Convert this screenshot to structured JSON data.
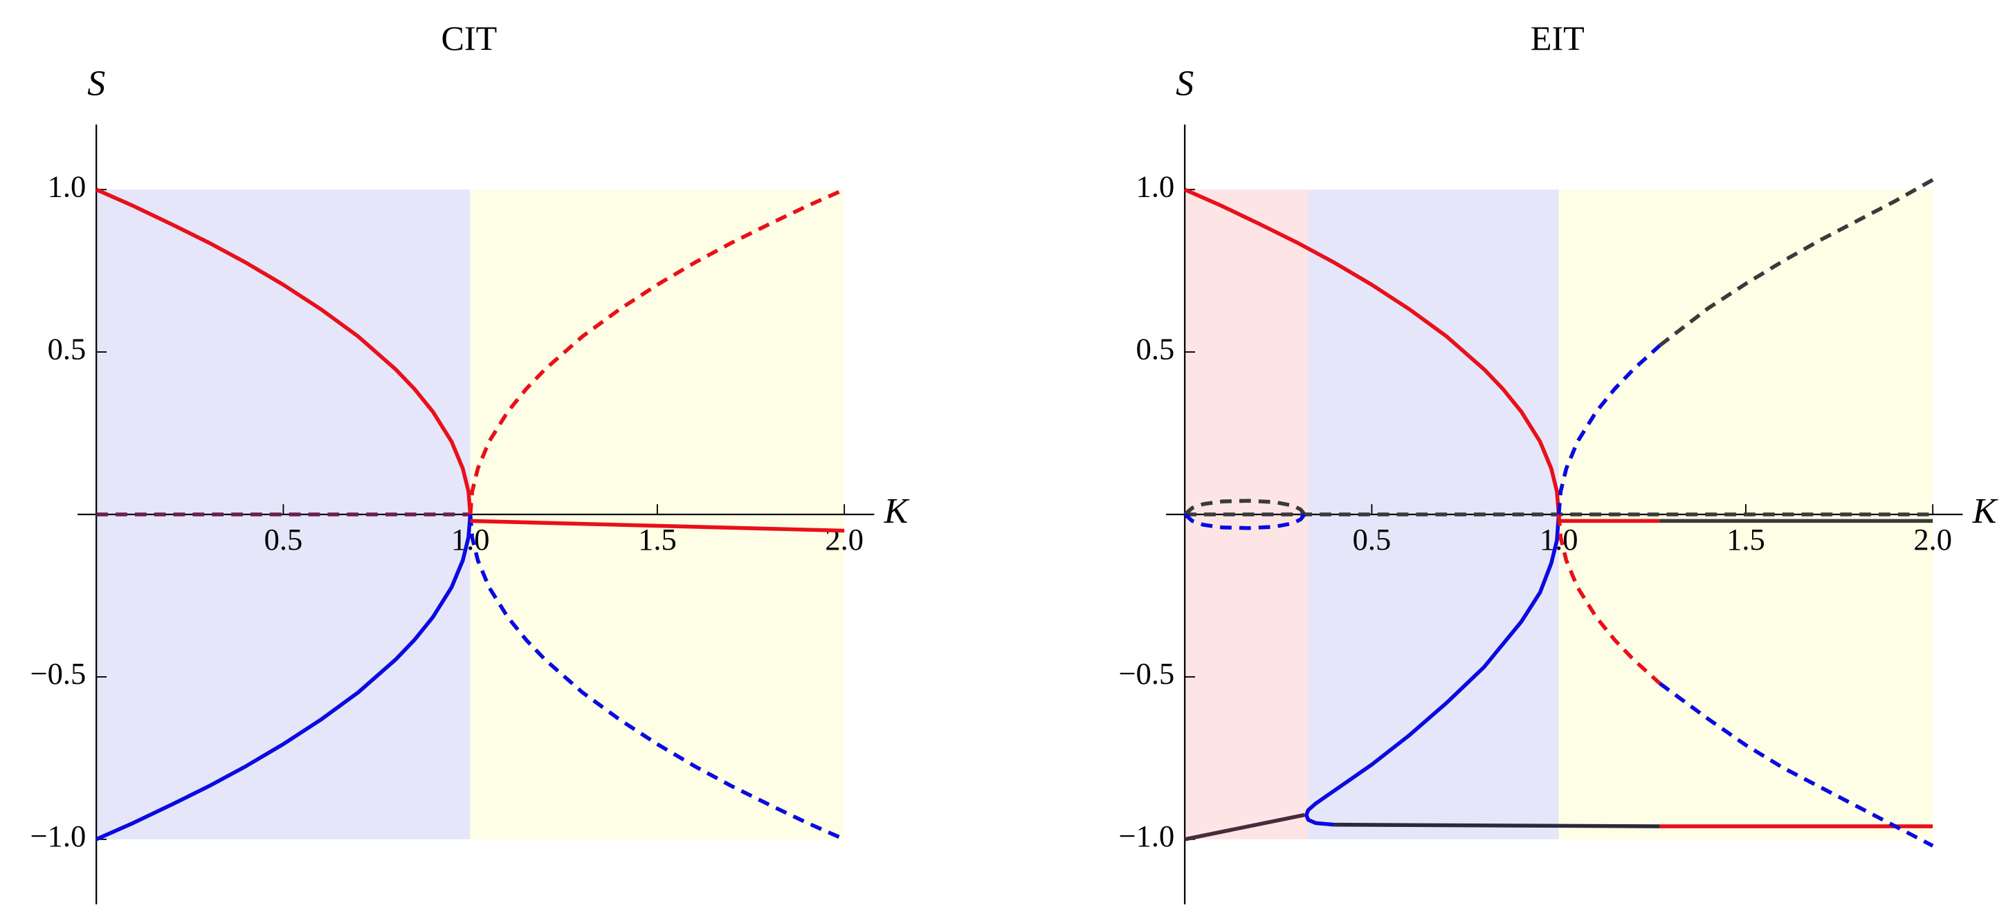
{
  "chart_data": [
    {
      "type": "line",
      "title": "CIT",
      "xlabel": "K",
      "ylabel": "S",
      "xlim": [
        -0.05,
        2.08
      ],
      "ylim": [
        -1.2,
        1.2
      ],
      "xticks": [
        0.5,
        {
          "value": 1,
          "label": "1.0"
        },
        1.5,
        {
          "value": 2,
          "label": "2.0"
        }
      ],
      "yticks": [
        {
          "value": -1,
          "label": "−1.0"
        },
        {
          "value": -0.5,
          "label": "−0.5"
        },
        0.5,
        {
          "value": 1,
          "label": "1.0"
        }
      ],
      "regions": [
        {
          "x": [
            0,
            1
          ],
          "y": [
            -1,
            1
          ],
          "color": "#e6e6fa"
        },
        {
          "x": [
            1,
            2
          ],
          "y": [
            -1,
            1
          ],
          "color": "#fefee6"
        }
      ],
      "series": [
        {
          "color": "#6a2050",
          "style": "dashed",
          "x": [
            0,
            1
          ],
          "values": [
            0,
            0
          ]
        },
        {
          "color": "#e8101a",
          "style": "solid",
          "x": [
            0,
            0.1,
            0.2,
            0.3,
            0.4,
            0.5,
            0.6,
            0.7,
            0.8,
            0.85,
            0.9,
            0.95,
            0.98,
            0.995,
            1
          ],
          "values": [
            1,
            0.949,
            0.894,
            0.837,
            0.775,
            0.707,
            0.632,
            0.548,
            0.447,
            0.387,
            0.316,
            0.224,
            0.141,
            0.071,
            0
          ]
        },
        {
          "color": "#0a0ae0",
          "style": "solid",
          "x": [
            0,
            0.1,
            0.2,
            0.3,
            0.4,
            0.5,
            0.6,
            0.7,
            0.8,
            0.85,
            0.9,
            0.95,
            0.98,
            0.995,
            1
          ],
          "values": [
            -1,
            -0.949,
            -0.894,
            -0.837,
            -0.775,
            -0.707,
            -0.632,
            -0.548,
            -0.447,
            -0.387,
            -0.316,
            -0.224,
            -0.141,
            -0.071,
            0
          ]
        },
        {
          "color": "#e8101a",
          "style": "dashed",
          "x": [
            1,
            1.005,
            1.02,
            1.05,
            1.1,
            1.15,
            1.2,
            1.3,
            1.4,
            1.5,
            1.6,
            1.7,
            1.8,
            1.9,
            2
          ],
          "values": [
            0,
            0.071,
            0.141,
            0.224,
            0.316,
            0.387,
            0.447,
            0.548,
            0.632,
            0.707,
            0.775,
            0.837,
            0.894,
            0.949,
            1
          ]
        },
        {
          "color": "#0a0ae0",
          "style": "dashed",
          "x": [
            1,
            1.005,
            1.02,
            1.05,
            1.1,
            1.15,
            1.2,
            1.3,
            1.4,
            1.5,
            1.6,
            1.7,
            1.8,
            1.9,
            2
          ],
          "values": [
            0,
            -0.071,
            -0.141,
            -0.224,
            -0.316,
            -0.387,
            -0.447,
            -0.548,
            -0.632,
            -0.707,
            -0.775,
            -0.837,
            -0.894,
            -0.949,
            -1
          ]
        },
        {
          "color": "#e8101a",
          "style": "solid",
          "x": [
            1,
            2
          ],
          "values": [
            -0.02,
            -0.05
          ]
        }
      ]
    },
    {
      "type": "line",
      "title": "EIT",
      "xlabel": "K",
      "ylabel": "S",
      "xlim": [
        -0.05,
        2.08
      ],
      "ylim": [
        -1.2,
        1.2
      ],
      "xticks": [
        0.5,
        {
          "value": 1,
          "label": "1.0"
        },
        1.5,
        {
          "value": 2,
          "label": "2.0"
        }
      ],
      "yticks": [
        {
          "value": -1,
          "label": "−1.0"
        },
        {
          "value": -0.5,
          "label": "−0.5"
        },
        0.5,
        {
          "value": 1,
          "label": "1.0"
        }
      ],
      "regions": [
        {
          "x": [
            0,
            0.33
          ],
          "y": [
            -1,
            1
          ],
          "color": "#fde5e6"
        },
        {
          "x": [
            0.33,
            1
          ],
          "y": [
            -1,
            1
          ],
          "color": "#e6e6fa"
        },
        {
          "x": [
            1,
            2
          ],
          "y": [
            -1,
            1
          ],
          "color": "#fefee6"
        }
      ],
      "series": [
        {
          "color": "#3a3a3a",
          "style": "dashed",
          "x": [
            0,
            2
          ],
          "values": [
            0,
            0
          ]
        },
        {
          "color": "#e8101a",
          "style": "solid",
          "x": [
            0,
            0.1,
            0.2,
            0.3,
            0.4,
            0.5,
            0.6,
            0.7,
            0.8,
            0.85,
            0.9,
            0.95,
            0.98,
            0.995,
            1
          ],
          "values": [
            1,
            0.949,
            0.894,
            0.837,
            0.775,
            0.707,
            0.632,
            0.548,
            0.447,
            0.387,
            0.316,
            0.224,
            0.141,
            0.071,
            0
          ]
        },
        {
          "color": "#4a2a3a",
          "style": "solid",
          "x": [
            0,
            0.32
          ],
          "values": [
            -1,
            -0.925
          ]
        },
        {
          "color": "#0a0ae0",
          "style": "solid",
          "x": [
            1,
            0.995,
            0.98,
            0.95,
            0.9,
            0.8,
            0.7,
            0.6,
            0.5,
            0.4,
            0.35,
            0.33,
            0.325,
            0.33,
            0.35,
            0.4
          ],
          "values": [
            0,
            -0.08,
            -0.15,
            -0.24,
            -0.33,
            -0.47,
            -0.58,
            -0.68,
            -0.77,
            -0.85,
            -0.89,
            -0.91,
            -0.925,
            -0.94,
            -0.95,
            -0.955
          ]
        },
        {
          "color": "#2a2a3a",
          "style": "solid",
          "x": [
            0.4,
            1.27
          ],
          "values": [
            -0.955,
            -0.96
          ]
        },
        {
          "color": "#e8101a",
          "style": "solid",
          "x": [
            1.27,
            2
          ],
          "values": [
            -0.96,
            -0.96
          ]
        },
        {
          "color": "#0a0ae0",
          "style": "dashed",
          "x": [
            1,
            1.005,
            1.02,
            1.05,
            1.1,
            1.15,
            1.2,
            1.27
          ],
          "values": [
            0,
            0.071,
            0.141,
            0.224,
            0.316,
            0.387,
            0.447,
            0.52
          ]
        },
        {
          "color": "#3a3a3a",
          "style": "dashed",
          "x": [
            1.27,
            1.4,
            1.5,
            1.6,
            1.7,
            1.8,
            1.9,
            2
          ],
          "values": [
            0.52,
            0.635,
            0.71,
            0.78,
            0.845,
            0.905,
            0.965,
            1.03
          ]
        },
        {
          "color": "#e8101a",
          "style": "dashed",
          "x": [
            1,
            1.005,
            1.02,
            1.05,
            1.1,
            1.15,
            1.2,
            1.27
          ],
          "values": [
            0,
            -0.071,
            -0.141,
            -0.224,
            -0.316,
            -0.387,
            -0.447,
            -0.52
          ]
        },
        {
          "color": "#0a0ae0",
          "style": "dashed",
          "x": [
            1.27,
            1.4,
            1.5,
            1.6,
            1.7,
            1.8,
            1.9,
            2
          ],
          "values": [
            -0.52,
            -0.63,
            -0.71,
            -0.78,
            -0.84,
            -0.9,
            -0.96,
            -1.02
          ]
        },
        {
          "color": "#3a3a3a",
          "style": "dashed",
          "x": [
            0,
            0.02,
            0.05,
            0.1,
            0.17,
            0.24,
            0.29,
            0.31,
            0.32
          ],
          "values": [
            0,
            0.02,
            0.032,
            0.04,
            0.042,
            0.038,
            0.027,
            0.015,
            0
          ]
        },
        {
          "color": "#0a0ae0",
          "style": "dashed",
          "x": [
            0,
            0.02,
            0.05,
            0.1,
            0.17,
            0.24,
            0.29,
            0.31,
            0.32
          ],
          "values": [
            0,
            -0.02,
            -0.032,
            -0.04,
            -0.042,
            -0.038,
            -0.027,
            -0.015,
            0
          ]
        },
        {
          "color": "#e8101a",
          "style": "solid",
          "x": [
            1,
            1.27
          ],
          "values": [
            -0.02,
            -0.02
          ]
        },
        {
          "color": "#3a3a3a",
          "style": "solid",
          "x": [
            1.27,
            2
          ],
          "values": [
            -0.02,
            -0.02
          ]
        }
      ]
    }
  ]
}
